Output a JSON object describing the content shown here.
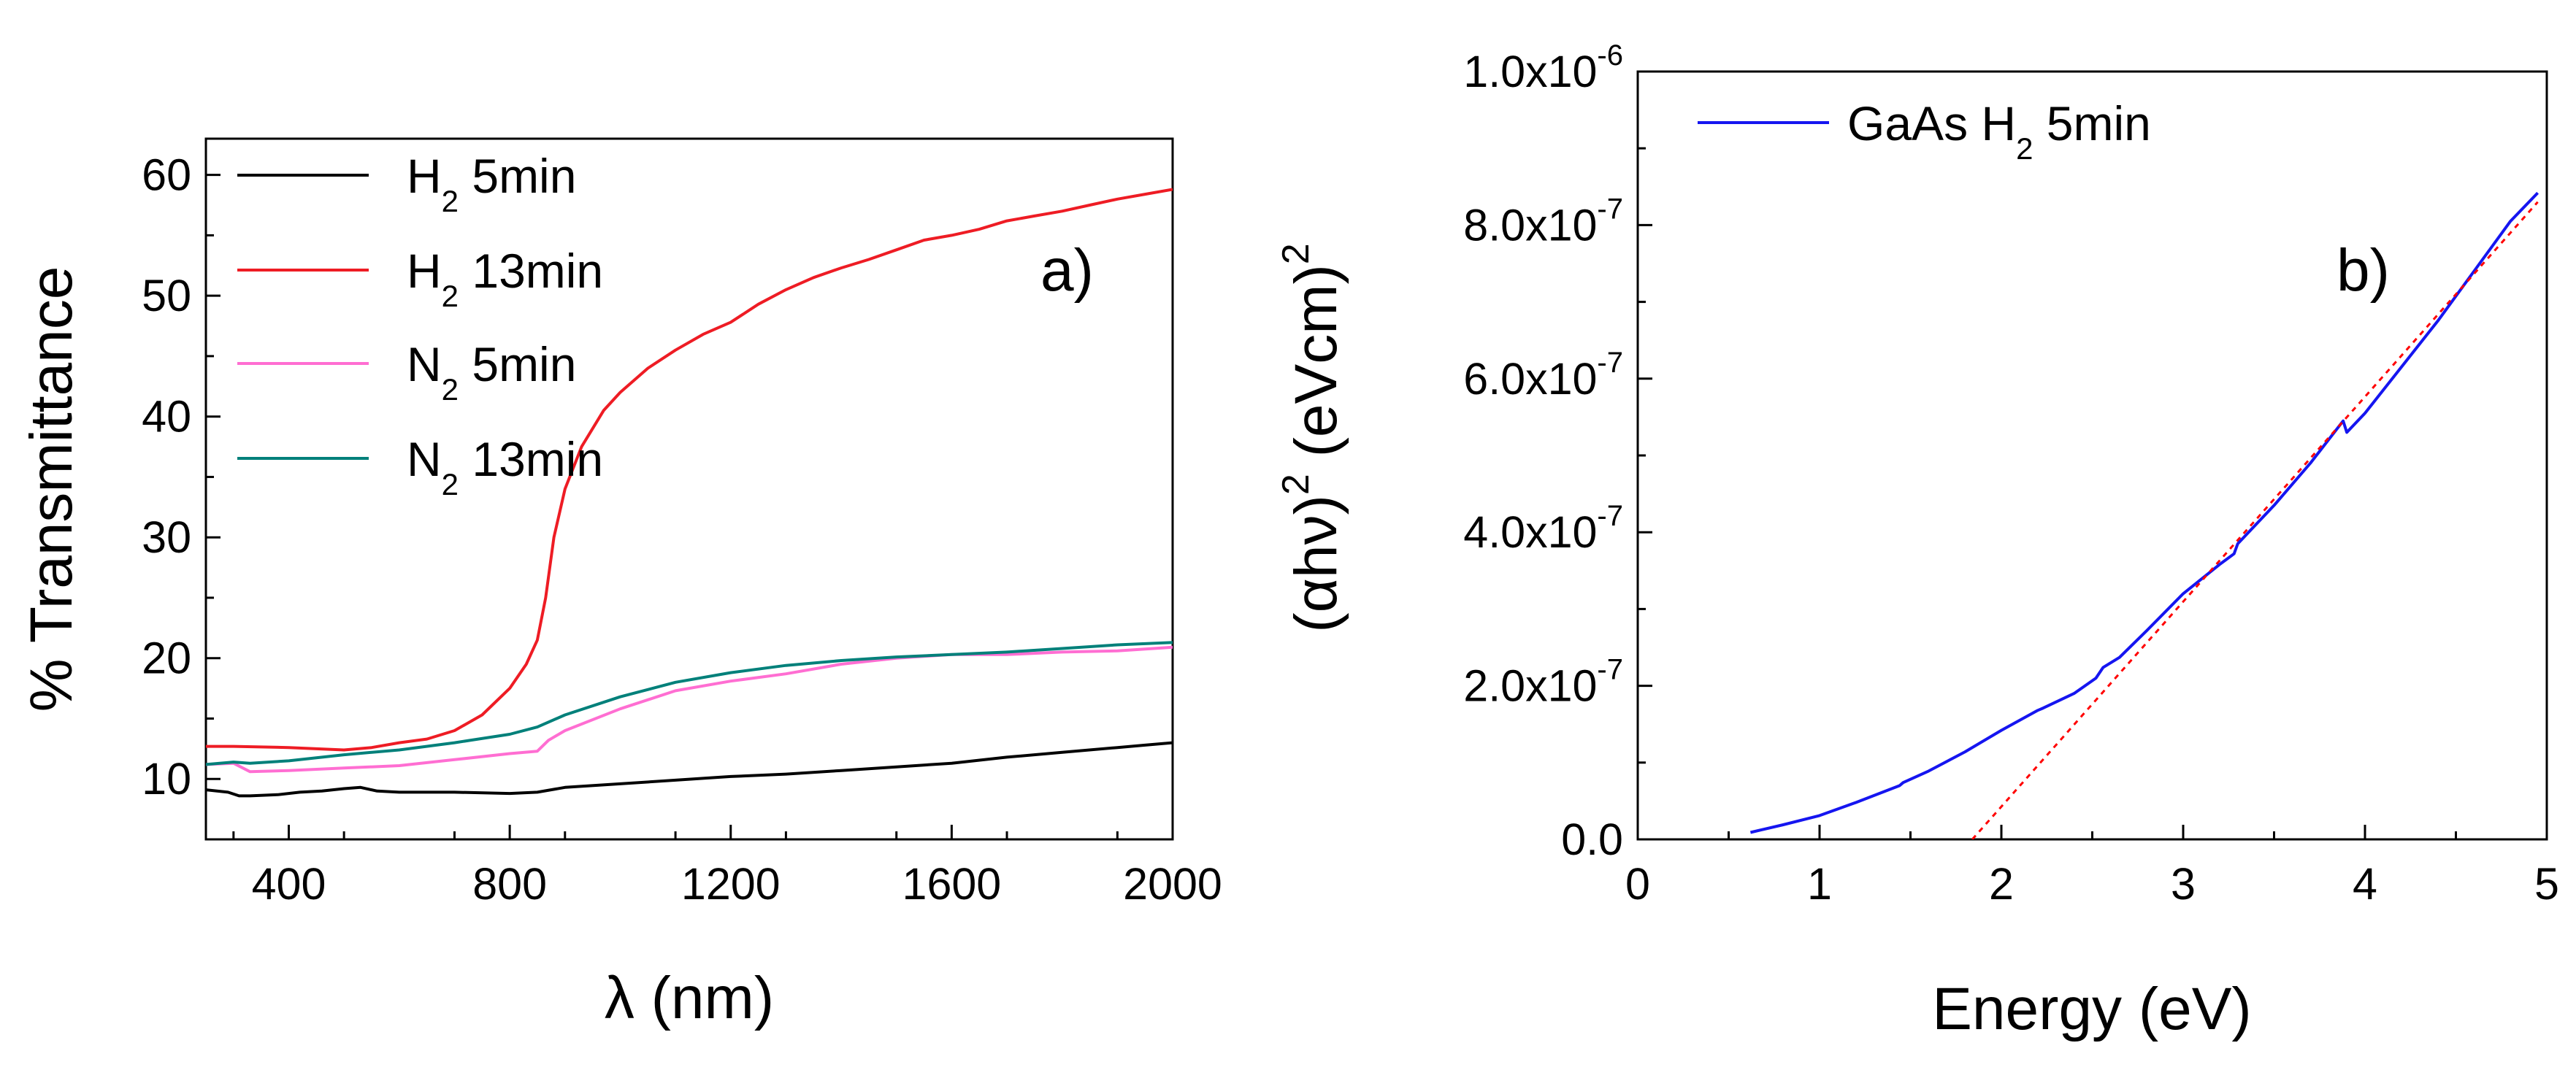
{
  "chart_data": [
    {
      "type": "line",
      "panel_label": "a)",
      "xlabel": "λ (nm)",
      "ylabel": "% Transmittance",
      "xlim": [
        250,
        2000
      ],
      "ylim": [
        5,
        63
      ],
      "x_ticks": [
        400,
        800,
        1200,
        1600,
        2000
      ],
      "x_tick_labels": [
        "400",
        "800",
        "1200",
        "1600",
        "2000"
      ],
      "y_ticks": [
        10,
        20,
        30,
        40,
        50,
        60
      ],
      "y_tick_labels": [
        "10",
        "20",
        "30",
        "40",
        "50",
        "60"
      ],
      "legend_position": "top-left",
      "series": [
        {
          "name": "H2 5min",
          "label_main": "H",
          "label_sub": "2",
          "label_rest": " 5min",
          "color": "#000000",
          "points": [
            [
              250,
              9.1
            ],
            [
              290,
              8.9
            ],
            [
              310,
              8.6
            ],
            [
              330,
              8.6
            ],
            [
              380,
              8.7
            ],
            [
              420,
              8.9
            ],
            [
              460,
              9.0
            ],
            [
              500,
              9.2
            ],
            [
              530,
              9.3
            ],
            [
              560,
              9.0
            ],
            [
              600,
              8.9
            ],
            [
              700,
              8.9
            ],
            [
              800,
              8.8
            ],
            [
              850,
              8.9
            ],
            [
              900,
              9.3
            ],
            [
              1000,
              9.6
            ],
            [
              1100,
              9.9
            ],
            [
              1200,
              10.2
            ],
            [
              1300,
              10.4
            ],
            [
              1400,
              10.7
            ],
            [
              1500,
              11.0
            ],
            [
              1600,
              11.3
            ],
            [
              1700,
              11.8
            ],
            [
              1800,
              12.2
            ],
            [
              1900,
              12.6
            ],
            [
              1950,
              12.8
            ],
            [
              2000,
              13.0
            ]
          ]
        },
        {
          "name": "H2 13min",
          "label_main": "H",
          "label_sub": "2",
          "label_rest": " 13min",
          "color": "#ee1c24",
          "points": [
            [
              250,
              12.7
            ],
            [
              300,
              12.7
            ],
            [
              400,
              12.6
            ],
            [
              500,
              12.4
            ],
            [
              550,
              12.6
            ],
            [
              600,
              13.0
            ],
            [
              650,
              13.3
            ],
            [
              700,
              14.0
            ],
            [
              750,
              15.3
            ],
            [
              800,
              17.5
            ],
            [
              830,
              19.5
            ],
            [
              850,
              21.5
            ],
            [
              865,
              25.0
            ],
            [
              880,
              30.0
            ],
            [
              900,
              34.0
            ],
            [
              930,
              37.5
            ],
            [
              970,
              40.5
            ],
            [
              1000,
              42.0
            ],
            [
              1050,
              44.0
            ],
            [
              1100,
              45.5
            ],
            [
              1150,
              46.8
            ],
            [
              1200,
              47.8
            ],
            [
              1250,
              49.3
            ],
            [
              1300,
              50.5
            ],
            [
              1350,
              51.5
            ],
            [
              1400,
              52.3
            ],
            [
              1450,
              53.0
            ],
            [
              1500,
              53.8
            ],
            [
              1550,
              54.6
            ],
            [
              1600,
              55.0
            ],
            [
              1650,
              55.5
            ],
            [
              1700,
              56.2
            ],
            [
              1750,
              56.6
            ],
            [
              1800,
              57.0
            ],
            [
              1850,
              57.5
            ],
            [
              1900,
              58.0
            ],
            [
              1950,
              58.4
            ],
            [
              2000,
              58.8
            ]
          ]
        },
        {
          "name": "N2 5min",
          "label_main": "N",
          "label_sub": "2",
          "label_rest": " 5min",
          "color": "#ff6ed2",
          "points": [
            [
              250,
              11.2
            ],
            [
              300,
              11.3
            ],
            [
              330,
              10.6
            ],
            [
              400,
              10.7
            ],
            [
              500,
              10.9
            ],
            [
              600,
              11.1
            ],
            [
              700,
              11.6
            ],
            [
              800,
              12.1
            ],
            [
              850,
              12.3
            ],
            [
              870,
              13.2
            ],
            [
              900,
              14.0
            ],
            [
              1000,
              15.8
            ],
            [
              1100,
              17.3
            ],
            [
              1200,
              18.1
            ],
            [
              1300,
              18.7
            ],
            [
              1400,
              19.5
            ],
            [
              1500,
              20.0
            ],
            [
              1600,
              20.3
            ],
            [
              1700,
              20.3
            ],
            [
              1800,
              20.5
            ],
            [
              1900,
              20.6
            ],
            [
              2000,
              20.9
            ]
          ]
        },
        {
          "name": "N2 13min",
          "label_main": "N",
          "label_sub": "2",
          "label_rest": " 13min",
          "color": "#00807a",
          "points": [
            [
              250,
              11.2
            ],
            [
              300,
              11.4
            ],
            [
              330,
              11.3
            ],
            [
              400,
              11.5
            ],
            [
              500,
              12.0
            ],
            [
              600,
              12.4
            ],
            [
              700,
              13.0
            ],
            [
              800,
              13.7
            ],
            [
              850,
              14.3
            ],
            [
              900,
              15.3
            ],
            [
              1000,
              16.8
            ],
            [
              1100,
              18.0
            ],
            [
              1200,
              18.8
            ],
            [
              1300,
              19.4
            ],
            [
              1400,
              19.8
            ],
            [
              1500,
              20.1
            ],
            [
              1600,
              20.3
            ],
            [
              1700,
              20.5
            ],
            [
              1800,
              20.8
            ],
            [
              1900,
              21.1
            ],
            [
              2000,
              21.3
            ]
          ]
        }
      ]
    },
    {
      "type": "line",
      "panel_label": "b)",
      "xlabel": "Energy (eV)",
      "ylabel_main": "(αhν)",
      "ylabel_sup": "2",
      "ylabel_unit": " (eVcm)",
      "ylabel_unit_sup": "2",
      "xlim": [
        0,
        5
      ],
      "ylim": [
        0,
        1e-06
      ],
      "x_ticks": [
        0,
        1,
        2,
        3,
        4,
        5
      ],
      "x_tick_labels": [
        "0",
        "1",
        "2",
        "3",
        "4",
        "5"
      ],
      "y_ticks": [
        0,
        2e-07,
        4e-07,
        6e-07,
        8e-07,
        1e-06
      ],
      "y_tick_main": [
        "0.0",
        "2.0x10",
        "4.0x10",
        "6.0x10",
        "8.0x10",
        "1.0x10"
      ],
      "y_tick_exp": [
        "",
        "-7",
        "-7",
        "-7",
        "-7",
        "-6"
      ],
      "legend_position": "top-left",
      "series": [
        {
          "name": "GaAs H2 5min",
          "label_main": "GaAs H",
          "label_sub": "2",
          "label_rest": " 5min",
          "color": "#1515f0",
          "points": [
            [
              0.62,
              9e-09
            ],
            [
              0.8,
              1.9e-08
            ],
            [
              1.0,
              3.1e-08
            ],
            [
              1.2,
              4.8e-08
            ],
            [
              1.44,
              7e-08
            ],
            [
              1.46,
              7.4e-08
            ],
            [
              1.6,
              8.9e-08
            ],
            [
              1.8,
              1.14e-07
            ],
            [
              2.0,
              1.42e-07
            ],
            [
              2.2,
              1.68e-07
            ],
            [
              2.23,
              1.71e-07
            ],
            [
              2.4,
              1.9e-07
            ],
            [
              2.52,
              2.1e-07
            ],
            [
              2.56,
              2.24e-07
            ],
            [
              2.65,
              2.37e-07
            ],
            [
              2.8,
              2.72e-07
            ],
            [
              3.0,
              3.2e-07
            ],
            [
              3.2,
              3.58e-07
            ],
            [
              3.28,
              3.72e-07
            ],
            [
              3.3,
              3.85e-07
            ],
            [
              3.5,
              4.35e-07
            ],
            [
              3.7,
              4.9e-07
            ],
            [
              3.88,
              5.45e-07
            ],
            [
              3.9,
              5.3e-07
            ],
            [
              4.0,
              5.55e-07
            ],
            [
              4.2,
              6.15e-07
            ],
            [
              4.4,
              6.75e-07
            ],
            [
              4.6,
              7.4e-07
            ],
            [
              4.8,
              8.05e-07
            ],
            [
              4.95,
              8.42e-07
            ]
          ]
        },
        {
          "name": "linear fit",
          "color": "#ff0000",
          "dashed": true,
          "points": [
            [
              1.84,
              0.0
            ],
            [
              4.95,
              8.3e-07
            ]
          ]
        }
      ]
    }
  ]
}
